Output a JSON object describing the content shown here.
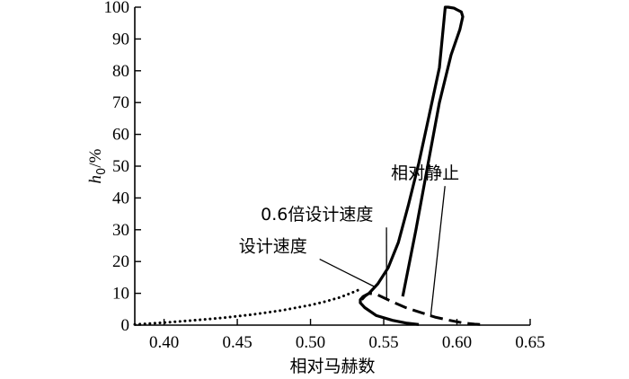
{
  "chart_data": {
    "type": "line",
    "title": "",
    "xlabel": "相对马赫数",
    "ylabel_main": "h",
    "ylabel_sub": "0",
    "ylabel_tail": "/%",
    "xlim": [
      0.38,
      0.65
    ],
    "ylim": [
      0,
      100
    ],
    "xticks": [
      0.4,
      0.45,
      0.5,
      0.55,
      0.6,
      0.65
    ],
    "xtick_labels": [
      "0.40",
      "0.45",
      "0.50",
      "0.55",
      "0.60",
      "0.65"
    ],
    "yticks": [
      0,
      10,
      20,
      30,
      40,
      50,
      60,
      70,
      80,
      90,
      100
    ],
    "ytick_labels": [
      "0",
      "10",
      "20",
      "30",
      "40",
      "50",
      "60",
      "70",
      "80",
      "90",
      "100"
    ],
    "grid": false,
    "legend": "none (curves labeled with leader lines)",
    "series": [
      {
        "name": "相对静止",
        "style": "dash",
        "x": [
          0.535,
          0.537,
          0.54,
          0.546,
          0.555,
          0.565,
          0.575,
          0.585,
          0.595,
          0.603,
          0.608,
          0.612,
          0.617
        ],
        "y": [
          8,
          9,
          10,
          9.5,
          7.5,
          5.5,
          4,
          2.5,
          1.5,
          0.8,
          0.5,
          0.3,
          0.2
        ]
      },
      {
        "name": "0.6倍设计速度",
        "style": "solid-thick",
        "x": [
          0.563,
          0.572,
          0.58,
          0.588,
          0.596,
          0.602,
          0.604,
          0.603,
          0.598,
          0.594,
          0.592,
          0.588,
          0.581,
          0.574,
          0.567,
          0.56,
          0.553,
          0.546,
          0.54,
          0.536,
          0.534,
          0.534,
          0.537,
          0.545,
          0.556,
          0.566,
          0.574
        ],
        "y": [
          9,
          30,
          50,
          70,
          85,
          93,
          97,
          98.5,
          99.7,
          100,
          100,
          81,
          66,
          51,
          38,
          26,
          18,
          13,
          10,
          9,
          8,
          7,
          5.5,
          3,
          1.5,
          0.6,
          0.2
        ]
      },
      {
        "name": "设计速度",
        "style": "dot",
        "x": [
          0.38,
          0.4,
          0.42,
          0.44,
          0.46,
          0.48,
          0.5,
          0.51,
          0.52,
          0.525,
          0.53,
          0.535
        ],
        "y": [
          0.2,
          0.8,
          1.5,
          2.3,
          3.3,
          4.6,
          6.3,
          7.4,
          8.7,
          9.6,
          10.5,
          11.5
        ]
      }
    ],
    "annotations": [
      {
        "text": "相对静止",
        "x": 0.555,
        "y": 46,
        "target": [
          0.582,
          2.5
        ]
      },
      {
        "text": "0.6倍设计速度",
        "x": 0.466,
        "y": 33,
        "target": [
          0.552,
          8
        ]
      },
      {
        "text": "设计速度",
        "x": 0.451,
        "y": 23,
        "target": [
          0.544,
          12
        ]
      }
    ]
  }
}
